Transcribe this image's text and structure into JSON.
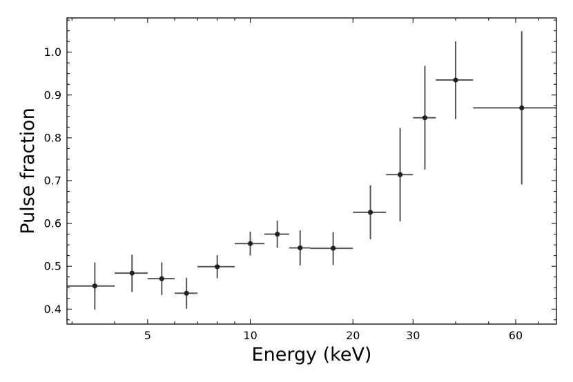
{
  "chart_data": {
    "type": "scatter",
    "title": "",
    "xlabel": "Energy (keV)",
    "ylabel": "Pulse fraction",
    "xscale": "log",
    "xlim": [
      2.9,
      79
    ],
    "ylim": [
      0.365,
      1.08
    ],
    "grid": false,
    "legend": "none",
    "colors": {
      "marker": "#222222",
      "errorbar": "#555555",
      "axis": "#000000"
    },
    "x_ticks_major": [
      {
        "value": 5,
        "label": "5"
      },
      {
        "value": 10,
        "label": "10"
      },
      {
        "value": 20,
        "label": "20"
      },
      {
        "value": 30,
        "label": "30"
      },
      {
        "value": 60,
        "label": "60"
      }
    ],
    "x_ticks_minor": [
      3,
      4,
      6,
      7,
      8,
      9,
      40,
      50,
      70
    ],
    "y_ticks_major": [
      {
        "value": 0.4,
        "label": "0.4"
      },
      {
        "value": 0.5,
        "label": "0.5"
      },
      {
        "value": 0.6,
        "label": "0.6"
      },
      {
        "value": 0.7,
        "label": "0.7"
      },
      {
        "value": 0.8,
        "label": "0.8"
      },
      {
        "value": 0.9,
        "label": "0.9"
      },
      {
        "value": 1.0,
        "label": "1.0"
      }
    ],
    "y_ticks_minor": [
      0.375,
      0.425,
      0.45,
      0.475,
      0.525,
      0.55,
      0.575,
      0.625,
      0.65,
      0.675,
      0.725,
      0.75,
      0.775,
      0.825,
      0.85,
      0.875,
      0.925,
      0.95,
      0.975,
      1.025,
      1.05,
      1.075
    ],
    "points": [
      {
        "x": 3.5,
        "xmin": 2.9,
        "xmax": 4.0,
        "y": 0.454,
        "ymin": 0.399,
        "ymax": 0.509
      },
      {
        "x": 4.5,
        "xmin": 4.0,
        "xmax": 5.0,
        "y": 0.484,
        "ymin": 0.44,
        "ymax": 0.527
      },
      {
        "x": 5.5,
        "xmin": 5.0,
        "xmax": 6.0,
        "y": 0.471,
        "ymin": 0.433,
        "ymax": 0.509
      },
      {
        "x": 6.5,
        "xmin": 6.0,
        "xmax": 7.0,
        "y": 0.437,
        "ymin": 0.401,
        "ymax": 0.473
      },
      {
        "x": 8.0,
        "xmin": 7.0,
        "xmax": 9.0,
        "y": 0.499,
        "ymin": 0.472,
        "ymax": 0.526
      },
      {
        "x": 10.0,
        "xmin": 9.0,
        "xmax": 11.0,
        "y": 0.553,
        "ymin": 0.525,
        "ymax": 0.581
      },
      {
        "x": 12.0,
        "xmin": 11.0,
        "xmax": 13.0,
        "y": 0.575,
        "ymin": 0.543,
        "ymax": 0.607
      },
      {
        "x": 14.0,
        "xmin": 13.0,
        "xmax": 15.0,
        "y": 0.543,
        "ymin": 0.502,
        "ymax": 0.584
      },
      {
        "x": 17.5,
        "xmin": 15.0,
        "xmax": 20.0,
        "y": 0.542,
        "ymin": 0.503,
        "ymax": 0.58
      },
      {
        "x": 22.5,
        "xmin": 20.0,
        "xmax": 25.0,
        "y": 0.626,
        "ymin": 0.563,
        "ymax": 0.689
      },
      {
        "x": 27.5,
        "xmin": 25.0,
        "xmax": 30.0,
        "y": 0.714,
        "ymin": 0.605,
        "ymax": 0.823
      },
      {
        "x": 32.5,
        "xmin": 30.0,
        "xmax": 35.0,
        "y": 0.847,
        "ymin": 0.726,
        "ymax": 0.968
      },
      {
        "x": 40.0,
        "xmin": 35.0,
        "xmax": 45.0,
        "y": 0.935,
        "ymin": 0.844,
        "ymax": 1.025
      },
      {
        "x": 62.5,
        "xmin": 45.0,
        "xmax": 79.0,
        "y": 0.87,
        "ymin": 0.691,
        "ymax": 1.049
      }
    ]
  }
}
